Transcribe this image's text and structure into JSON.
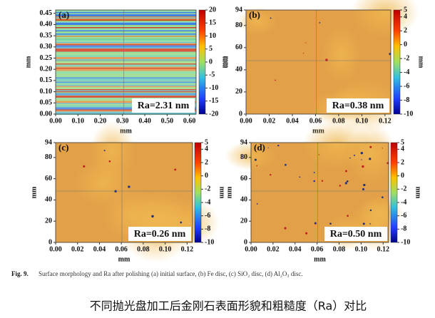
{
  "chart_data": [
    {
      "type": "heatmap",
      "panel_label": "(a)",
      "annotation": "Ra=2.31 nm",
      "x_label": "mm",
      "y_label": "mm",
      "colorbar_label": "mm",
      "xlim": [
        0,
        0.63
      ],
      "xticks": [
        {
          "value": 0,
          "label": "0.00"
        },
        {
          "value": 0.1,
          "label": "0.10"
        },
        {
          "value": 0.2,
          "label": "0.20"
        },
        {
          "value": 0.3,
          "label": "0.30"
        },
        {
          "value": 0.4,
          "label": "0.40"
        },
        {
          "value": 0.5,
          "label": "0.50"
        },
        {
          "value": 0.6,
          "label": "0.60"
        }
      ],
      "ylim": [
        0,
        0.465
      ],
      "yticks": [
        {
          "value": 0,
          "label": "0.00"
        },
        0.05,
        {
          "value": 0.1,
          "label": "0.10"
        },
        0.15,
        {
          "value": 0.2,
          "label": "0.20"
        },
        0.25,
        {
          "value": 0.3,
          "label": "0.30"
        },
        0.35,
        {
          "value": 0.4,
          "label": "0.40"
        },
        0.45
      ],
      "clim": [
        -20,
        20
      ],
      "cticks": [
        20,
        15,
        10,
        5,
        0,
        -5,
        -10,
        -15,
        -20
      ]
    },
    {
      "type": "heatmap",
      "panel_label": "(b)",
      "annotation": "Ra=0.38 nm",
      "x_label": "mm",
      "y_label": "mm",
      "colorbar_label": "mm",
      "xlim": [
        0,
        0.125
      ],
      "xticks": [
        {
          "value": 0,
          "label": "0.00"
        },
        {
          "value": 0.02,
          "label": "0.02"
        },
        {
          "value": 0.04,
          "label": "0.04"
        },
        {
          "value": 0.06,
          "label": "0.06"
        },
        {
          "value": 0.08,
          "label": "0.08"
        },
        {
          "value": 0.1,
          "label": "0.10"
        },
        {
          "value": 0.12,
          "label": "0.12"
        }
      ],
      "ylim": [
        0,
        94
      ],
      "yticks": [
        0,
        20,
        40,
        60,
        80,
        94
      ],
      "clim": [
        -10,
        5
      ],
      "cticks": [
        5,
        4,
        2,
        0,
        -2,
        -4,
        -6,
        -8,
        -10
      ]
    },
    {
      "type": "heatmap",
      "panel_label": "(c)",
      "annotation": "Ra=0.26 nm",
      "x_label": "mm",
      "y_label": "mm",
      "colorbar_label": "mm",
      "xlim": [
        0,
        0.125
      ],
      "xticks": [
        {
          "value": 0,
          "label": "0.00"
        },
        {
          "value": 0.02,
          "label": "0.02"
        },
        {
          "value": 0.04,
          "label": "0.04"
        },
        {
          "value": 0.06,
          "label": "0.06"
        },
        {
          "value": 0.08,
          "label": "0.08"
        },
        {
          "value": 0.1,
          "label": "0.10"
        },
        {
          "value": 0.12,
          "label": "0.12"
        }
      ],
      "ylim": [
        0,
        94
      ],
      "yticks": [
        0,
        20,
        40,
        60,
        80,
        94
      ],
      "clim": [
        -10,
        5
      ],
      "cticks": [
        5,
        4,
        2,
        0,
        -2,
        -4,
        -6,
        -8,
        -10
      ]
    },
    {
      "type": "heatmap",
      "panel_label": "(d)",
      "annotation": "Ra=0.50 nm",
      "x_label": "mm",
      "y_label": "mm",
      "colorbar_label": "mm",
      "xlim": [
        0,
        0.125
      ],
      "xticks": [
        {
          "value": 0,
          "label": "0.00"
        },
        {
          "value": 0.02,
          "label": "0.02"
        },
        {
          "value": 0.04,
          "label": "0.04"
        },
        {
          "value": 0.06,
          "label": "0.06"
        },
        {
          "value": 0.08,
          "label": "0.08"
        },
        {
          "value": 0.1,
          "label": "0.10"
        },
        {
          "value": 0.12,
          "label": "0.12"
        }
      ],
      "ylim": [
        0,
        94
      ],
      "yticks": [
        0,
        20,
        40,
        60,
        80,
        94
      ],
      "clim": [
        -10,
        5
      ],
      "cticks": [
        5,
        4,
        2,
        0,
        -2,
        -4,
        -6,
        -8,
        -10
      ]
    }
  ],
  "caption": {
    "label": "Fig. 9.",
    "text": "Surface morphology and Ra after polishing (a) initial surface, (b) Fe disc, (c) SiO₂ disc, (d) Al₂O₃ disc."
  },
  "chinese_caption": "不同抛光盘加工后金刚石表面形貌和粗糙度（Ra）对比"
}
